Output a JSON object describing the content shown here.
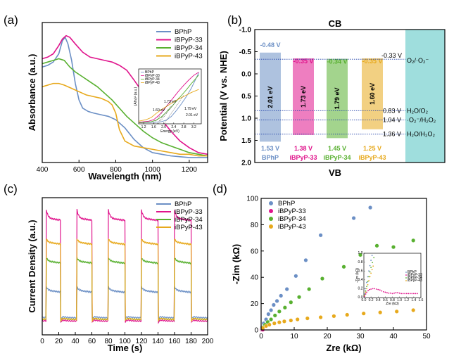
{
  "colors": {
    "BPhP": "#6b8fc5",
    "iBPyP-33": "#e0148c",
    "iBPyP-34": "#58b030",
    "iBPyP-43": "#e7a91c",
    "cyan_box": "#9fdedd",
    "level_line": "#1f3fa8"
  },
  "panels": {
    "a": "(a)",
    "b": "(b)",
    "c": "(c)",
    "d": "(d)"
  },
  "chart_data": [
    {
      "id": "a",
      "type": "line",
      "xlabel": "Wavelength (nm)",
      "ylabel": "Absorbance (a.u.)",
      "xlim": [
        400,
        1300
      ],
      "xticks": [
        "400",
        "600",
        "800",
        "1000",
        "1200"
      ],
      "legend": [
        "BPhP",
        "iBPyP-33",
        "iBPyP-34",
        "iBPyP-43"
      ],
      "legend_position": "top-right",
      "series": [
        {
          "name": "BPhP",
          "x": [
            400,
            430,
            460,
            490,
            510,
            525,
            540,
            560,
            580,
            600,
            620,
            650,
            680,
            720,
            760,
            800,
            850,
            900,
            950,
            1000,
            1050,
            1100,
            1150,
            1200,
            1250,
            1300
          ],
          "y": [
            0.58,
            0.59,
            0.61,
            0.66,
            0.74,
            0.76,
            0.72,
            0.62,
            0.48,
            0.38,
            0.33,
            0.31,
            0.3,
            0.29,
            0.28,
            0.26,
            0.21,
            0.14,
            0.09,
            0.06,
            0.05,
            0.04,
            0.035,
            0.03,
            0.03,
            0.03
          ]
        },
        {
          "name": "iBPyP-33",
          "x": [
            400,
            430,
            460,
            490,
            510,
            530,
            550,
            580,
            620,
            660,
            700,
            740,
            780,
            820,
            860,
            900,
            950,
            1000,
            1050,
            1100,
            1150,
            1200,
            1250,
            1300
          ],
          "y": [
            0.63,
            0.64,
            0.66,
            0.71,
            0.75,
            0.77,
            0.76,
            0.72,
            0.67,
            0.64,
            0.63,
            0.62,
            0.61,
            0.59,
            0.56,
            0.5,
            0.42,
            0.34,
            0.26,
            0.19,
            0.13,
            0.09,
            0.06,
            0.05
          ]
        },
        {
          "name": "iBPyP-34",
          "x": [
            400,
            430,
            460,
            490,
            520,
            550,
            580,
            620,
            660,
            700,
            740,
            780,
            820,
            860,
            900,
            950,
            1000,
            1050,
            1100,
            1150,
            1200,
            1250,
            1300
          ],
          "y": [
            0.6,
            0.61,
            0.62,
            0.63,
            0.62,
            0.58,
            0.55,
            0.52,
            0.49,
            0.46,
            0.42,
            0.38,
            0.33,
            0.28,
            0.24,
            0.19,
            0.15,
            0.12,
            0.1,
            0.08,
            0.06,
            0.05,
            0.04
          ]
        },
        {
          "name": "iBPyP-43",
          "x": [
            400,
            430,
            460,
            490,
            520,
            560,
            600,
            640,
            680,
            720,
            760,
            780,
            800,
            820,
            850,
            900,
            950,
            1000,
            1050,
            1100,
            1150,
            1200,
            1250,
            1300
          ],
          "y": [
            0.46,
            0.47,
            0.48,
            0.48,
            0.47,
            0.45,
            0.43,
            0.41,
            0.4,
            0.39,
            0.37,
            0.35,
            0.3,
            0.2,
            0.13,
            0.1,
            0.09,
            0.08,
            0.07,
            0.06,
            0.05,
            0.05,
            0.04,
            0.04
          ]
        }
      ],
      "inset": {
        "type": "line",
        "xlabel": "Energy (eV)",
        "ylabel": "(Ahν)² (a.u.)",
        "xlim": [
          1.0,
          3.5
        ],
        "xticks": [
          "1.2",
          "1.6",
          "2.0",
          "2.4",
          "2.8",
          "3.2"
        ],
        "legend": [
          "BPhP",
          "iBPyP-33",
          "iBPyP-34",
          "iBPyP-43"
        ],
        "annotations": [
          "1.60 eV",
          "1.73 eV",
          "1.79 eV",
          "2.01 eV"
        ],
        "series": [
          {
            "name": "BPhP",
            "x": [
              1.0,
              1.6,
              1.9,
              2.1,
              2.3,
              2.5,
              2.7,
              2.9,
              3.1,
              3.3,
              3.4
            ],
            "y": [
              0.02,
              0.03,
              0.04,
              0.07,
              0.14,
              0.25,
              0.38,
              0.52,
              0.68,
              0.88,
              0.98
            ]
          },
          {
            "name": "iBPyP-33",
            "x": [
              1.0,
              1.4,
              1.6,
              1.8,
              2.0,
              2.2,
              2.4,
              2.6,
              2.8,
              3.0,
              3.2,
              3.4
            ],
            "y": [
              0.03,
              0.05,
              0.08,
              0.16,
              0.27,
              0.39,
              0.51,
              0.63,
              0.74,
              0.84,
              0.93,
              0.99
            ]
          },
          {
            "name": "iBPyP-34",
            "x": [
              1.0,
              1.5,
              1.7,
              1.9,
              2.1,
              2.3,
              2.5,
              2.7,
              2.9,
              3.1,
              3.3,
              3.4
            ],
            "y": [
              0.02,
              0.04,
              0.07,
              0.13,
              0.22,
              0.32,
              0.43,
              0.54,
              0.65,
              0.77,
              0.88,
              0.94
            ]
          },
          {
            "name": "iBPyP-43",
            "x": [
              1.0,
              1.3,
              1.5,
              1.7,
              1.9,
              2.1,
              2.3,
              2.5,
              2.7,
              2.9,
              3.1,
              3.3,
              3.4
            ],
            "y": [
              0.05,
              0.08,
              0.12,
              0.2,
              0.27,
              0.33,
              0.39,
              0.45,
              0.5,
              0.55,
              0.6,
              0.64,
              0.66
            ]
          }
        ]
      }
    },
    {
      "id": "b",
      "type": "bar",
      "title": "CB",
      "bottom_label": "VB",
      "ylabel": "Potential (V vs. NHE)",
      "ylim": [
        -1.0,
        2.0
      ],
      "yticks": [
        "-1.0",
        "-0.5",
        "0.0",
        "0.5",
        "1.0",
        "1.5",
        "2.0"
      ],
      "categories": [
        "BPhP",
        "iBPyP-33",
        "iBPyP-34",
        "iBPyP-43"
      ],
      "cb_values": [
        -0.48,
        -0.35,
        -0.34,
        -0.35
      ],
      "vb_values": [
        1.53,
        1.38,
        1.45,
        1.25
      ],
      "cb_labels": [
        "-0.48 V",
        "-0.35 V",
        "-0.34 V",
        "-0.35 V"
      ],
      "vb_labels": [
        "1.53 V",
        "1.38 V",
        "1.45 V",
        "1.25 V"
      ],
      "gap_labels": [
        "2.01 eV",
        "1.73 eV",
        "1.79 eV",
        "1.60 eV"
      ],
      "levels": [
        {
          "value": -0.33,
          "value_label": "-0.33 V",
          "species": "O₂/·O₂⁻"
        },
        {
          "value": 0.83,
          "value_label": "0.83 V",
          "species": "H₂O/O₂"
        },
        {
          "value": 1.04,
          "value_label": "1.04 V",
          "species": "·O₂⁻/H₂O₂"
        },
        {
          "value": 1.36,
          "value_label": "1.36 V",
          "species": "H₂O/H₂O₂"
        }
      ]
    },
    {
      "id": "c",
      "type": "line",
      "xlabel": "Time (s)",
      "ylabel": "Current Density (a.u.)",
      "xlim": [
        0,
        200
      ],
      "xticks": [
        "0",
        "20",
        "40",
        "60",
        "80",
        "100",
        "120",
        "140",
        "160",
        "180",
        "200"
      ],
      "legend": [
        "BPhP",
        "iBPyP-33",
        "iBPyP-34",
        "iBPyP-43"
      ],
      "legend_position": "top-right",
      "light_on_intervals": [
        [
          5,
          22
        ],
        [
          42,
          60
        ],
        [
          80,
          100
        ],
        [
          120,
          140
        ],
        [
          160,
          180
        ]
      ],
      "series": [
        {
          "name": "BPhP",
          "on": 0.26,
          "off": 0.1
        },
        {
          "name": "iBPyP-33",
          "on": 0.68,
          "off": 0.08
        },
        {
          "name": "iBPyP-34",
          "on": 0.43,
          "off": 0.09
        },
        {
          "name": "iBPyP-43",
          "on": 0.54,
          "off": 0.09
        }
      ]
    },
    {
      "id": "d",
      "type": "scatter",
      "xlabel": "Zre (kΩ)",
      "ylabel": "-Zim (kΩ)",
      "xlim": [
        0,
        50
      ],
      "ylim": [
        0,
        100
      ],
      "xticks": [
        "0",
        "10",
        "20",
        "30",
        "40",
        "50"
      ],
      "yticks": [
        "0",
        "20",
        "40",
        "60",
        "80",
        "100"
      ],
      "legend": [
        "BPhP",
        "iBPyP-33",
        "iBPyP-34",
        "iBPyP-43"
      ],
      "legend_position": "top-left",
      "series": [
        {
          "name": "BPhP",
          "x": [
            0.3,
            0.8,
            1.5,
            2.2,
            3.0,
            3.8,
            4.8,
            6.0,
            7.8,
            10.5,
            13.5,
            18,
            28,
            33
          ],
          "y": [
            2,
            5,
            8,
            12,
            15,
            19,
            22,
            26,
            31,
            41,
            53,
            72,
            85,
            93
          ]
        },
        {
          "name": "iBPyP-33",
          "x": [
            0.05,
            0.1,
            0.15,
            0.2,
            0.25,
            0.3,
            0.35,
            0.4,
            0.45,
            0.5
          ],
          "y": [
            0.05,
            0.1,
            0.15,
            0.2,
            0.22,
            0.22,
            0.21,
            0.2,
            0.19,
            0.18
          ]
        },
        {
          "name": "iBPyP-34",
          "x": [
            0.5,
            1.2,
            2.0,
            3.0,
            4.2,
            5.5,
            7.2,
            9.0,
            11.5,
            14.5,
            18.5,
            25,
            30,
            35,
            40,
            46
          ],
          "y": [
            2,
            4,
            6,
            8,
            11,
            14,
            17,
            21,
            25,
            31,
            39,
            48,
            57,
            64,
            63,
            68
          ]
        },
        {
          "name": "iBPyP-43",
          "x": [
            0.5,
            1.5,
            2.5,
            4,
            5.5,
            7,
            9,
            11,
            14,
            18,
            22,
            26,
            31,
            36,
            41,
            46
          ],
          "y": [
            1.5,
            3,
            4,
            5,
            5.8,
            6.5,
            7.2,
            8,
            8.8,
            9.6,
            10.5,
            11.5,
            12.5,
            13.3,
            14,
            15
          ]
        }
      ],
      "inset": {
        "type": "scatter",
        "xlabel": "Zre (kΩ)",
        "ylabel": "-Zim (kΩ)",
        "xlim": [
          0,
          1.6
        ],
        "ylim": [
          0,
          1.0
        ],
        "xticks": [
          "0.0",
          "0.2",
          "0.4",
          "0.6",
          "0.8",
          "1.0",
          "1.2",
          "1.4",
          "1.6"
        ],
        "yticks": [
          "0.0",
          "0.2",
          "0.4",
          "0.6",
          "0.8",
          "1.0"
        ],
        "legend": [
          "BPhP",
          "iBPyP-33",
          "iBPyP-34",
          "iBPyP-43"
        ],
        "series": [
          {
            "name": "BPhP",
            "x": [
              0.02,
              0.05,
              0.08,
              0.11,
              0.14,
              0.17,
              0.2,
              0.23
            ],
            "y": [
              0.08,
              0.2,
              0.34,
              0.47,
              0.6,
              0.72,
              0.84,
              0.95
            ]
          },
          {
            "name": "iBPyP-33",
            "x": [
              0.02,
              0.05,
              0.08,
              0.12,
              0.16,
              0.2,
              0.25,
              0.3,
              0.35,
              0.4,
              0.45,
              0.5,
              0.55,
              0.6,
              0.65,
              0.7,
              0.75,
              0.8,
              0.85,
              0.9,
              0.95,
              1.0,
              1.05,
              1.1,
              1.15,
              1.2,
              1.25,
              1.3,
              1.35,
              1.4,
              1.45,
              1.5
            ],
            "y": [
              0.03,
              0.08,
              0.12,
              0.16,
              0.18,
              0.19,
              0.2,
              0.2,
              0.19,
              0.18,
              0.17,
              0.15,
              0.13,
              0.12,
              0.11,
              0.1,
              0.1,
              0.09,
              0.1,
              0.11,
              0.11,
              0.1,
              0.09,
              0.09,
              0.09,
              0.09,
              0.09,
              0.09,
              0.09,
              0.09,
              0.09,
              0.09
            ]
          },
          {
            "name": "iBPyP-34",
            "x": [
              0.02,
              0.05,
              0.08,
              0.11,
              0.14,
              0.17,
              0.2,
              0.24,
              0.28
            ],
            "y": [
              0.06,
              0.15,
              0.25,
              0.36,
              0.47,
              0.58,
              0.68,
              0.79,
              0.9
            ]
          },
          {
            "name": "iBPyP-43",
            "x": [
              0.02,
              0.05,
              0.08,
              0.11,
              0.14,
              0.17,
              0.2,
              0.23,
              0.26
            ],
            "y": [
              0.05,
              0.12,
              0.2,
              0.29,
              0.38,
              0.47,
              0.55,
              0.63,
              0.71
            ]
          }
        ]
      }
    }
  ]
}
